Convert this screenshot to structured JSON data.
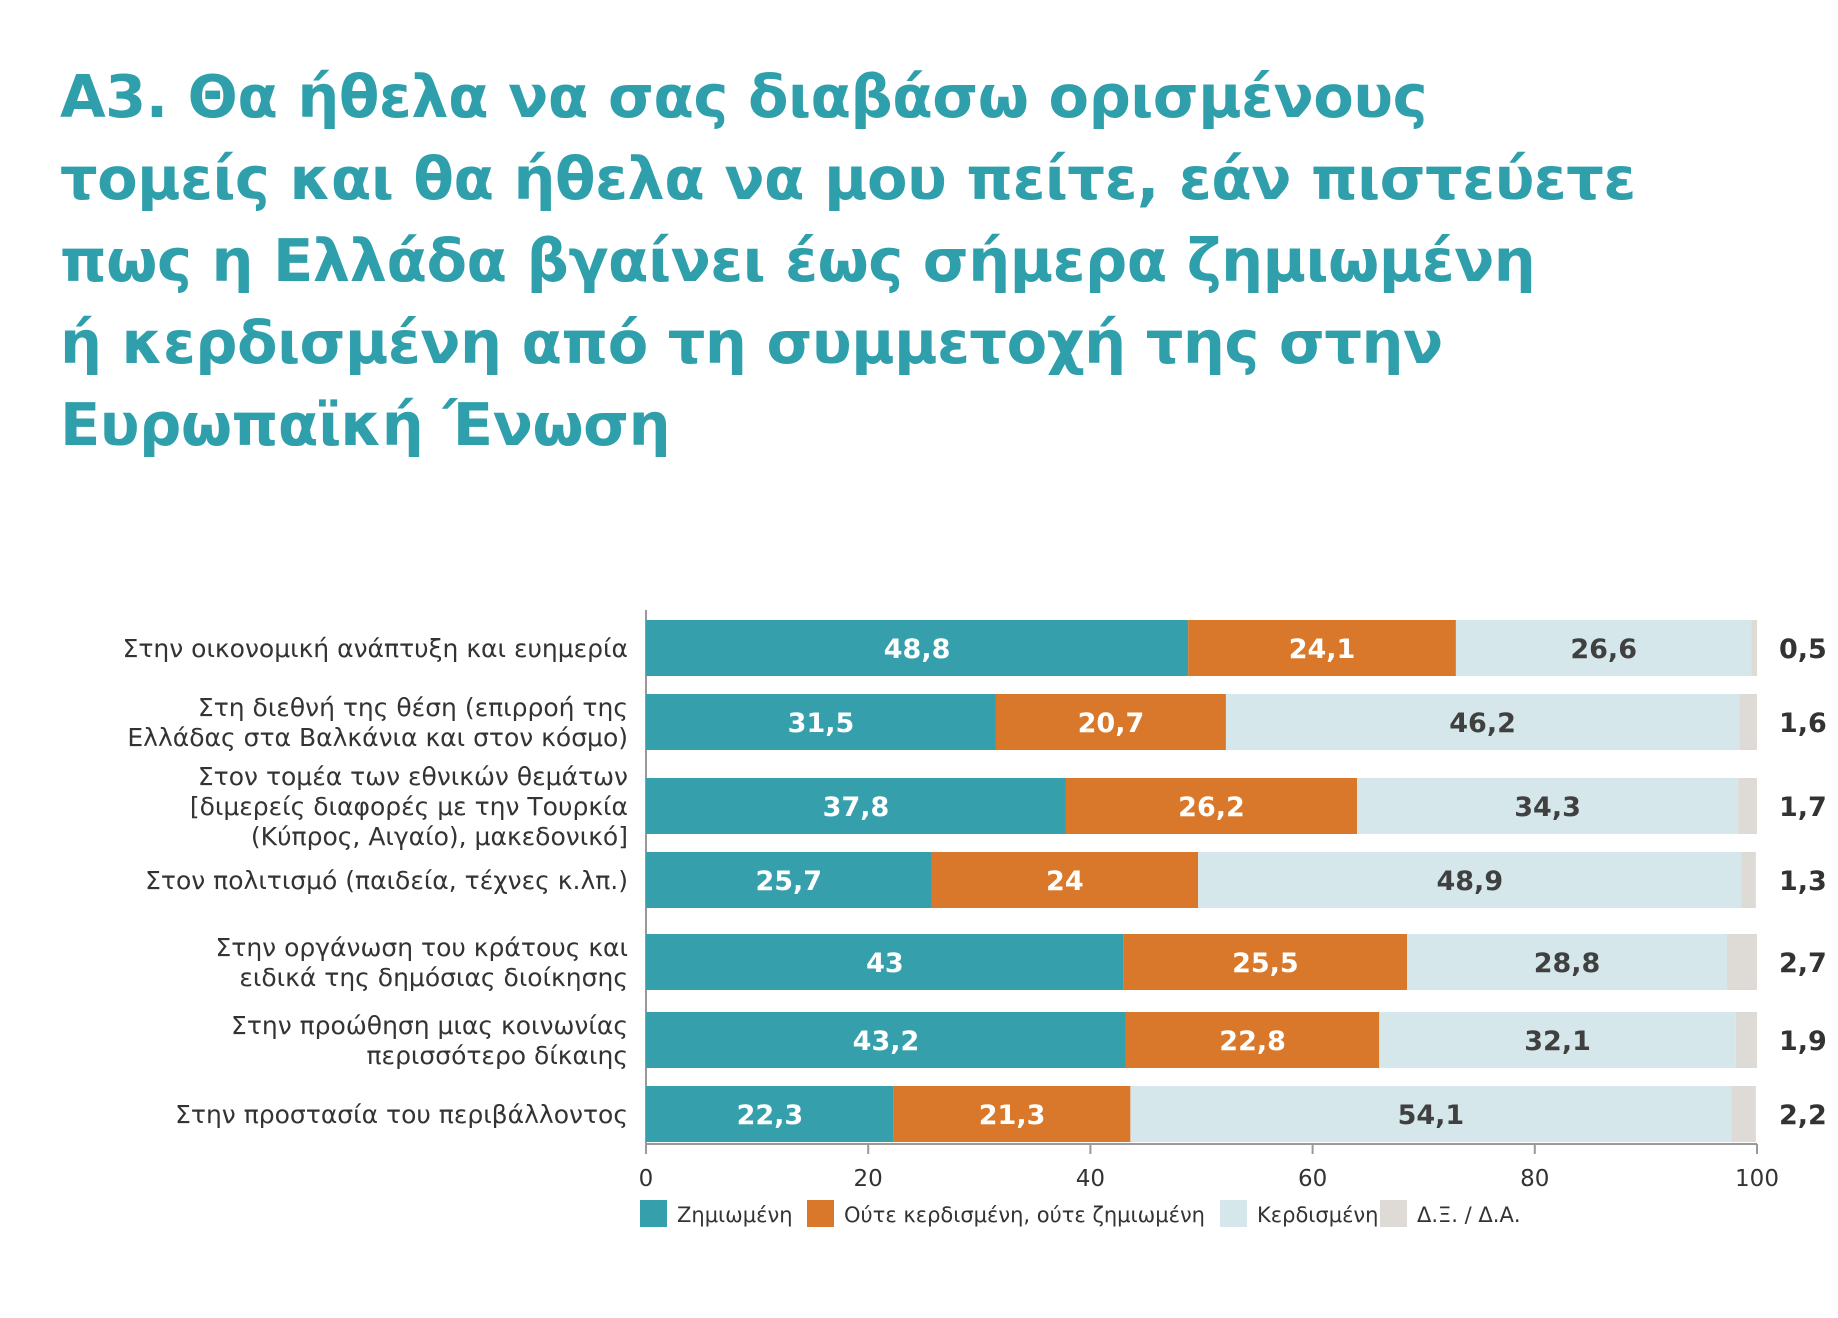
{
  "title_lines": [
    "Α3. Θα ήθελα να σας διαβάσω ορισμένους",
    "τομείς και θα ήθελα να μου πείτε, εάν πιστεύετε",
    "πως η Ελλάδα βγαίνει έως σήμερα ζημιωμένη",
    "ή κερδισμένη από τη συμμετοχή της στην",
    "Ευρωπαϊκή Ένωση"
  ],
  "colors": {
    "title": "#2f9fab",
    "text": "#333333",
    "axis": "#999999"
  },
  "chart_data": {
    "type": "bar",
    "orientation": "horizontal",
    "stacked": true,
    "categories": [
      [
        "Στην οικονομική ανάπτυξη και ευημερία"
      ],
      [
        "Στη διεθνή της θέση (επιρροή της",
        "Ελλάδας στα Βαλκάνια και στον κόσμο)"
      ],
      [
        "Στον τομέα των εθνικών θεμάτων",
        "[διμερείς διαφορές με την Τουρκία",
        "(Κύπρος, Αιγαίο), μακεδονικό]"
      ],
      [
        "Στον πολιτισμό (παιδεία, τέχνες κ.λπ.)"
      ],
      [
        "Στην οργάνωση του κράτους και",
        "ειδικά της δημόσιας διοίκησης"
      ],
      [
        "Στην προώθηση μιας κοινωνίας",
        "περισσότερο δίκαιης"
      ],
      [
        "Στην προστασία του περιβάλλοντος"
      ]
    ],
    "series": [
      {
        "name": "Ζημιωμένη",
        "color": "#35a0ab",
        "label_color": "#ffffff",
        "values": [
          48.8,
          31.5,
          37.8,
          25.7,
          43,
          43.2,
          22.3
        ],
        "labels": [
          "48,8",
          "31,5",
          "37,8",
          "25,7",
          "43",
          "43,2",
          "22,3"
        ]
      },
      {
        "name": "Ούτε κερδισμένη, ούτε ζημιωμένη",
        "color": "#d9782a",
        "label_color": "#ffffff",
        "values": [
          24.1,
          20.7,
          26.2,
          24,
          25.5,
          22.8,
          21.3
        ],
        "labels": [
          "24,1",
          "20,7",
          "26,2",
          "24",
          "25,5",
          "22,8",
          "21,3"
        ]
      },
      {
        "name": "Κερδισμένη",
        "color": "#d5e7ea",
        "label_color": "#404040",
        "values": [
          26.6,
          46.2,
          34.3,
          48.9,
          28.8,
          32.1,
          54.1
        ],
        "labels": [
          "26,6",
          "46,2",
          "34,3",
          "48,9",
          "28,8",
          "32,1",
          "54,1"
        ]
      },
      {
        "name": "Δ.Ξ. / Δ.Α.",
        "color": "#dedad6",
        "label_color": "#333333",
        "values": [
          0.5,
          1.6,
          1.7,
          1.3,
          2.7,
          1.9,
          2.2
        ],
        "labels": [
          "0,5",
          "1,6",
          "1,7",
          "1,3",
          "2,7",
          "1,9",
          "2,2"
        ]
      }
    ],
    "xlim": [
      0,
      100
    ],
    "xticks": [
      0,
      20,
      40,
      60,
      80,
      100
    ],
    "grid": false,
    "legend_position": "bottom"
  }
}
